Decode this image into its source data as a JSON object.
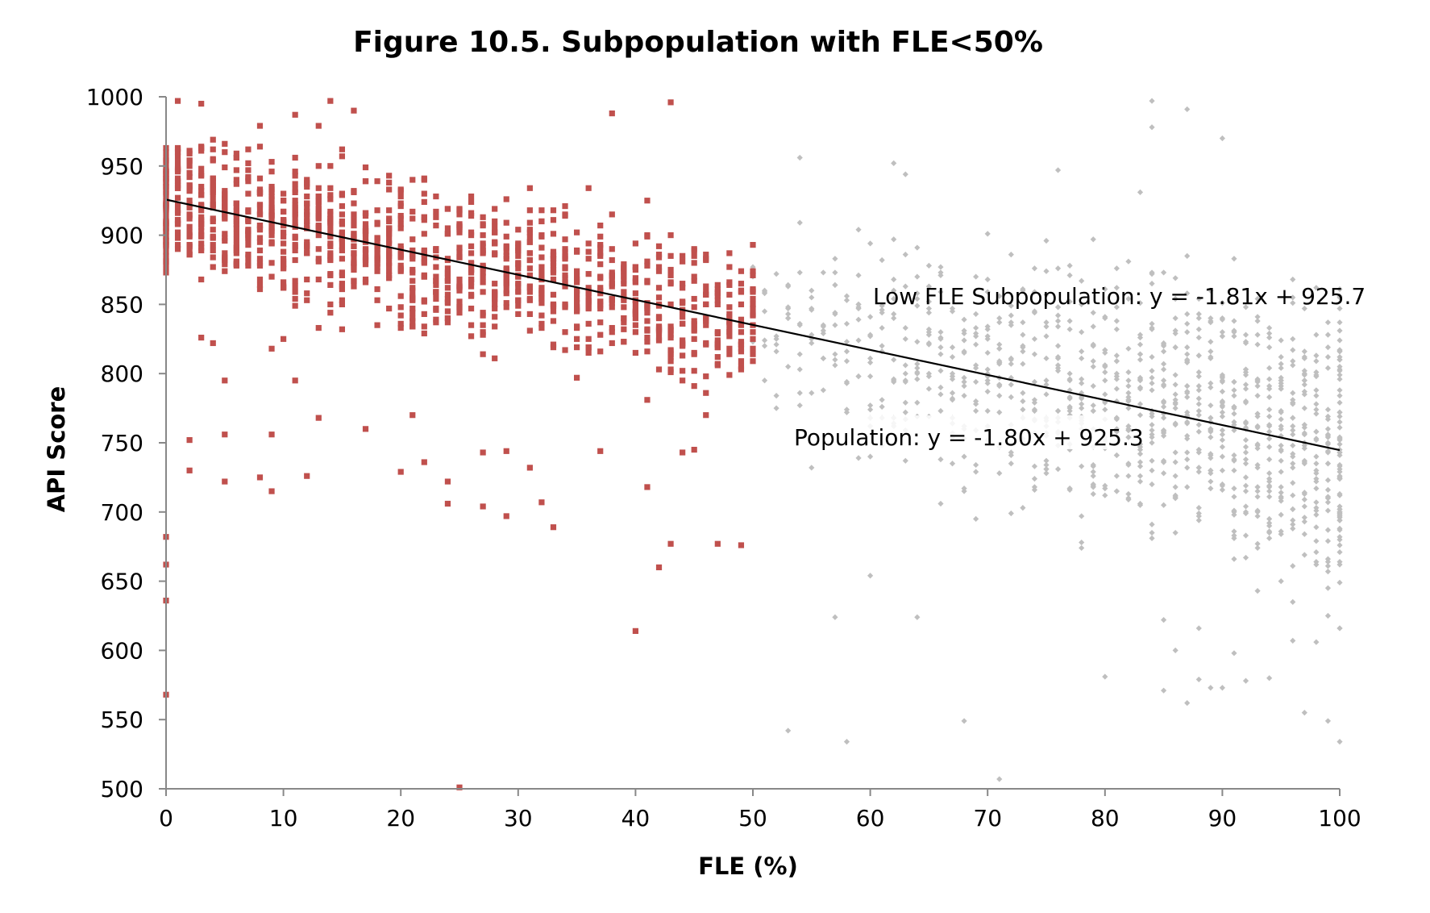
{
  "chart_data": {
    "type": "scatter",
    "title": "Figure 10.5. Subpopulation with FLE<50%",
    "xlabel": "FLE (%)",
    "ylabel": "API Score",
    "xlim": [
      0,
      100
    ],
    "ylim": [
      500,
      1000
    ],
    "x_ticks": [
      0,
      10,
      20,
      30,
      40,
      50,
      60,
      70,
      80,
      90,
      100
    ],
    "y_ticks": [
      500,
      550,
      600,
      650,
      700,
      750,
      800,
      850,
      900,
      950,
      1000
    ],
    "grid": false,
    "legend": "none",
    "series": [
      {
        "marker": "square",
        "color": "#C0504D",
        "x_range": [
          0,
          50
        ],
        "outliers": [
          [
            0,
            568
          ],
          [
            0,
            636
          ],
          [
            0,
            662
          ],
          [
            0,
            682
          ],
          [
            25,
            501
          ],
          [
            40,
            614
          ],
          [
            42,
            660
          ],
          [
            43,
            677
          ],
          [
            47,
            677
          ],
          [
            49,
            676
          ],
          [
            24,
            706
          ],
          [
            27,
            704
          ],
          [
            29,
            697
          ],
          [
            33,
            689
          ],
          [
            32,
            707
          ],
          [
            41,
            718
          ],
          [
            5,
            722
          ],
          [
            9,
            715
          ],
          [
            12,
            726
          ],
          [
            20,
            729
          ],
          [
            22,
            736
          ],
          [
            24,
            722
          ],
          [
            31,
            732
          ],
          [
            2,
            730
          ],
          [
            8,
            725
          ],
          [
            14,
            997
          ],
          [
            43,
            996
          ],
          [
            38,
            988
          ],
          [
            16,
            990
          ],
          [
            11,
            987
          ],
          [
            1,
            997
          ],
          [
            3,
            995
          ],
          [
            3,
            826
          ],
          [
            4,
            822
          ],
          [
            5,
            795
          ],
          [
            9,
            818
          ],
          [
            10,
            825
          ],
          [
            11,
            795
          ],
          [
            13,
            768
          ],
          [
            2,
            752
          ],
          [
            5,
            756
          ],
          [
            9,
            756
          ],
          [
            17,
            760
          ],
          [
            21,
            770
          ],
          [
            27,
            743
          ],
          [
            29,
            744
          ],
          [
            37,
            744
          ],
          [
            44,
            743
          ],
          [
            45,
            745
          ],
          [
            46,
            770
          ]
        ]
      },
      {
        "marker": "diamond",
        "color": "#BFBFBF",
        "x_range": [
          50,
          100
        ],
        "outliers": [
          [
            53,
            542
          ],
          [
            58,
            534
          ],
          [
            68,
            549
          ],
          [
            71,
            507
          ],
          [
            80,
            581
          ],
          [
            85,
            571
          ],
          [
            87,
            562
          ],
          [
            88,
            579
          ],
          [
            89,
            573
          ],
          [
            90,
            573
          ],
          [
            92,
            578
          ],
          [
            94,
            580
          ],
          [
            97,
            555
          ],
          [
            99,
            549
          ],
          [
            100,
            534
          ],
          [
            84,
            997
          ],
          [
            84,
            978
          ],
          [
            87,
            991
          ],
          [
            90,
            970
          ],
          [
            54,
            956
          ],
          [
            62,
            952
          ],
          [
            63,
            944
          ],
          [
            76,
            947
          ],
          [
            83,
            931
          ],
          [
            57,
            624
          ],
          [
            64,
            624
          ],
          [
            60,
            654
          ],
          [
            86,
            600
          ],
          [
            88,
            616
          ],
          [
            85,
            622
          ],
          [
            91,
            598
          ],
          [
            96,
            607
          ],
          [
            98,
            606
          ]
        ]
      }
    ],
    "trendlines": [
      {
        "label": "Low FLE Subpopulation: y = -1.81x + 925.7",
        "slope": -1.81,
        "intercept": 925.7,
        "x_range": [
          0,
          100
        ]
      },
      {
        "label": "Population: y = -1.80x + 925.3",
        "slope": -1.8,
        "intercept": 925.3,
        "x_range": [
          0,
          100
        ]
      }
    ]
  }
}
